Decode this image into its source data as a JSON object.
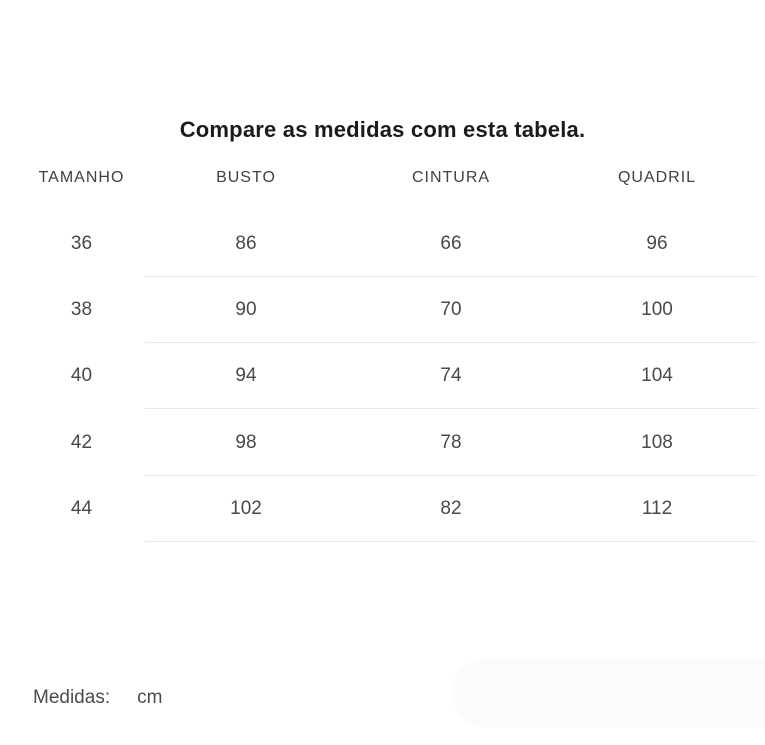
{
  "title": "Compare as medidas com esta tabela.",
  "table": {
    "headers": [
      "TAMANHO",
      "BUSTO",
      "CINTURA",
      "QUADRIL"
    ],
    "rows": [
      [
        "36",
        "86",
        "66",
        "96"
      ],
      [
        "38",
        "90",
        "70",
        "100"
      ],
      [
        "40",
        "94",
        "74",
        "104"
      ],
      [
        "42",
        "98",
        "78",
        "108"
      ],
      [
        "44",
        "102",
        "82",
        "112"
      ]
    ]
  },
  "footer": {
    "label": "Medidas:",
    "value": "cm"
  },
  "colors": {
    "title_text": "#1b1b1b",
    "header_text": "#3d4249",
    "cell_text": "#46494d",
    "footer_text": "#4b4b4b",
    "divider": "#e8e8e8",
    "background_pill": "#fbfbfb",
    "page_background": "#ffffff"
  }
}
